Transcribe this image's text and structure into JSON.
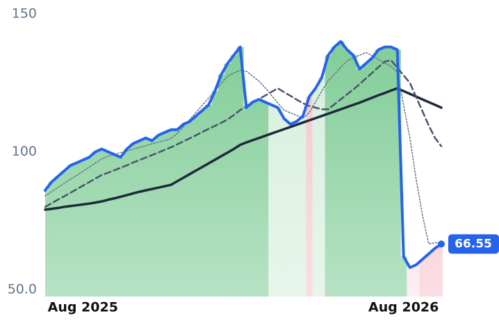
{
  "chart_data": {
    "type": "line",
    "categories": [
      null,
      null,
      null,
      null,
      null,
      null,
      "Aug 2025",
      null,
      null,
      null,
      null,
      null,
      null,
      null,
      null,
      null,
      null,
      null,
      null,
      null,
      null,
      null,
      null,
      null,
      null,
      null,
      null,
      null,
      null,
      null,
      null,
      null,
      null,
      null,
      null,
      null,
      null,
      null,
      null,
      null,
      null,
      null,
      null,
      null,
      null,
      null,
      null,
      null,
      null,
      null,
      null,
      null,
      null,
      null,
      null,
      null,
      null,
      "Aug 2026",
      null,
      null,
      null,
      null,
      null,
      null
    ],
    "series": [
      {
        "color": "#2563eb",
        "style": "solid",
        "width": 4,
        "fill_colors": [
          "#7ccb93",
          "#7ccb93",
          "#7ccb93",
          "#7ccb93",
          "#7ccb93",
          "#7ccb93",
          "#7ccb93",
          "#7ccb93",
          "#7ccb93",
          "#7ccb93",
          "#7ccb93",
          "#7ccb93",
          "#7ccb93",
          "#7ccb93",
          "#7ccb93",
          "#7ccb93",
          "#7ccb93",
          "#7ccb93",
          "#7ccb93",
          "#7ccb93",
          "#7ccb93",
          "#7ccb93",
          "#7ccb93",
          "#7ccb93",
          "#7ccb93",
          "#7ccb93",
          "#7ccb93",
          "#7ccb93",
          "#7ccb93",
          "#7ccb93",
          "#7ccb93",
          "#7ccb93",
          "#7ccb93",
          "#7ccb93",
          "#7ccb93",
          "#7ccb93",
          "#d4eedc",
          "#d4eedc",
          "#d4eedc",
          "#d4eedc",
          "#d4eedc",
          "#d4eedc",
          "#f7c3cc",
          "#d4eedc",
          "#d4eedc",
          "#7ccb93",
          "#7ccb93",
          "#7ccb93",
          "#7ccb93",
          "#7ccb93",
          "#7ccb93",
          "#7ccb93",
          "#7ccb93",
          "#7ccb93",
          "#7ccb93",
          "#7ccb93",
          "#7ccb93",
          "#7ccb93",
          "#fbe0e5",
          "#fbe0e5",
          "#f7c3cc",
          "#f7c3cc",
          "#f7c3cc",
          "#f7c3cc"
        ],
        "values": [
          86,
          89,
          91,
          93,
          95,
          96,
          97,
          98,
          100,
          101,
          100,
          99,
          98,
          101,
          103,
          104,
          105,
          104,
          106,
          107,
          108,
          108,
          110,
          111,
          113,
          115,
          117,
          122,
          128,
          132,
          135,
          138,
          116,
          118,
          119,
          118,
          117,
          116,
          112,
          110,
          111,
          113,
          120,
          123,
          127,
          135,
          138,
          140,
          137,
          135,
          130,
          132,
          134,
          137,
          138,
          138,
          137,
          62,
          58,
          59,
          61,
          63,
          65,
          66.55
        ]
      },
      {
        "color": "#64748b",
        "style": "dotted",
        "width": 1.5,
        "values": [
          84,
          85.5,
          87,
          88.5,
          90,
          91.4,
          92.9,
          94.4,
          95.9,
          97.4,
          98.4,
          99,
          99.7,
          100.3,
          100.9,
          101.6,
          102.2,
          102.9,
          103.5,
          104.1,
          104.8,
          106.6,
          109.1,
          111.7,
          114.3,
          116.9,
          119.5,
          122.1,
          124.8,
          127.4,
          128.6,
          129.5,
          129.2,
          127.4,
          125.6,
          123.2,
          120.4,
          117.7,
          115.1,
          114.1,
          113.2,
          112.2,
          114.2,
          118.1,
          122,
          125.7,
          128.1,
          130.6,
          133,
          134.1,
          135,
          136,
          134.8,
          133.5,
          132.2,
          131,
          128.8,
          117,
          105,
          90,
          77,
          66.6,
          67,
          67
        ]
      },
      {
        "color": "#475569",
        "style": "dashed",
        "width": 2.5,
        "values": [
          80,
          81.3,
          82.6,
          83.8,
          85.1,
          86.4,
          87.7,
          89,
          90.3,
          91.6,
          92.4,
          93.3,
          94.2,
          95.1,
          96.1,
          97,
          97.9,
          98.8,
          99.7,
          100.7,
          101.6,
          102.7,
          103.8,
          104.9,
          106,
          107.2,
          108.3,
          109.4,
          110.5,
          111.7,
          113.3,
          115.1,
          116.6,
          117.9,
          119.1,
          120.4,
          121.7,
          123,
          121.6,
          120.3,
          118.9,
          117.6,
          116.6,
          116,
          115.4,
          115.4,
          117.2,
          119,
          120.8,
          122.6,
          124.5,
          126.6,
          128.6,
          130.7,
          132.7,
          133.2,
          130.5,
          127.7,
          125,
          119.8,
          114.7,
          109.5,
          105,
          102
        ]
      },
      {
        "color": "#1e293b",
        "style": "solid",
        "width": 3.5,
        "values": [
          79,
          79.3,
          79.6,
          80,
          80.3,
          80.6,
          80.9,
          81.2,
          81.6,
          82,
          82.6,
          83.1,
          83.7,
          84.3,
          84.9,
          85.5,
          86,
          86.5,
          87,
          87.5,
          88,
          89.3,
          90.6,
          91.9,
          93.2,
          94.5,
          95.8,
          97.1,
          98.4,
          99.7,
          101,
          102.5,
          103.4,
          104.2,
          105,
          105.8,
          106.6,
          107.4,
          108.2,
          109,
          109.8,
          110.6,
          111.4,
          112.2,
          113,
          113.8,
          114.6,
          115.4,
          116.2,
          117,
          117.8,
          118.7,
          119.6,
          120.5,
          121.3,
          122.2,
          123,
          122,
          121,
          120,
          119,
          118,
          117,
          116
        ]
      }
    ],
    "ylim": [
      47.5,
      150
    ],
    "yticks": [
      {
        "value": 50,
        "label": "50.0"
      },
      100,
      150
    ],
    "grid": false
  }
}
